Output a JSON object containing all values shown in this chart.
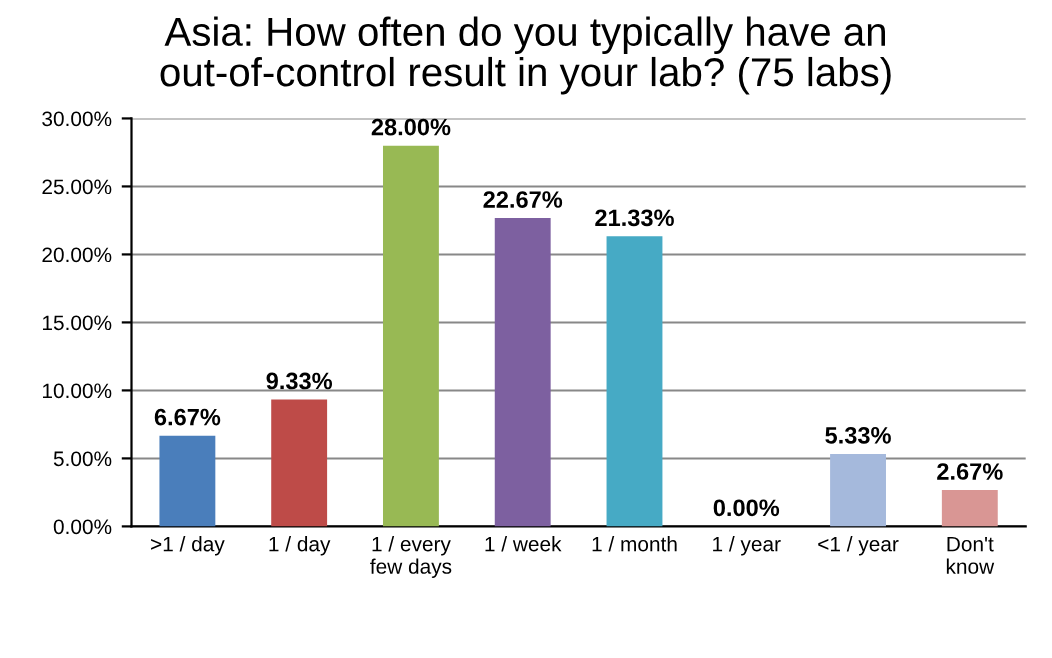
{
  "chart_data": {
    "type": "bar",
    "title": "Asia: How often do you typically have an\nout-of-control result in your lab? (75 labs)",
    "categories": [
      ">1 / day",
      "1 / day",
      "1 / every\nfew days",
      "1 / week",
      "1 / month",
      "1 / year",
      "<1 / year",
      "Don't\nknow"
    ],
    "values": [
      6.67,
      9.33,
      28.0,
      22.67,
      21.33,
      0.0,
      5.33,
      2.67
    ],
    "colors": [
      "#4a7ebb",
      "#be4b48",
      "#98b954",
      "#7d60a0",
      "#46aac5",
      "#f79646",
      "#a5b9dc",
      "#d99694"
    ],
    "value_labels": [
      "6.67%",
      "9.33%",
      "28.00%",
      "22.67%",
      "21.33%",
      "0.00%",
      "5.33%",
      "2.67%"
    ],
    "ylim": [
      0,
      30
    ],
    "yticks": [
      {
        "value": 0,
        "label": "0.00%"
      },
      {
        "value": 5,
        "label": "5.00%"
      },
      {
        "value": 10,
        "label": "10.00%"
      },
      {
        "value": 15,
        "label": "15.00%"
      },
      {
        "value": 20,
        "label": "20.00%"
      },
      {
        "value": 25,
        "label": "25.00%"
      },
      {
        "value": 30,
        "label": "30.00%"
      }
    ],
    "grid": "y",
    "legend": false
  }
}
